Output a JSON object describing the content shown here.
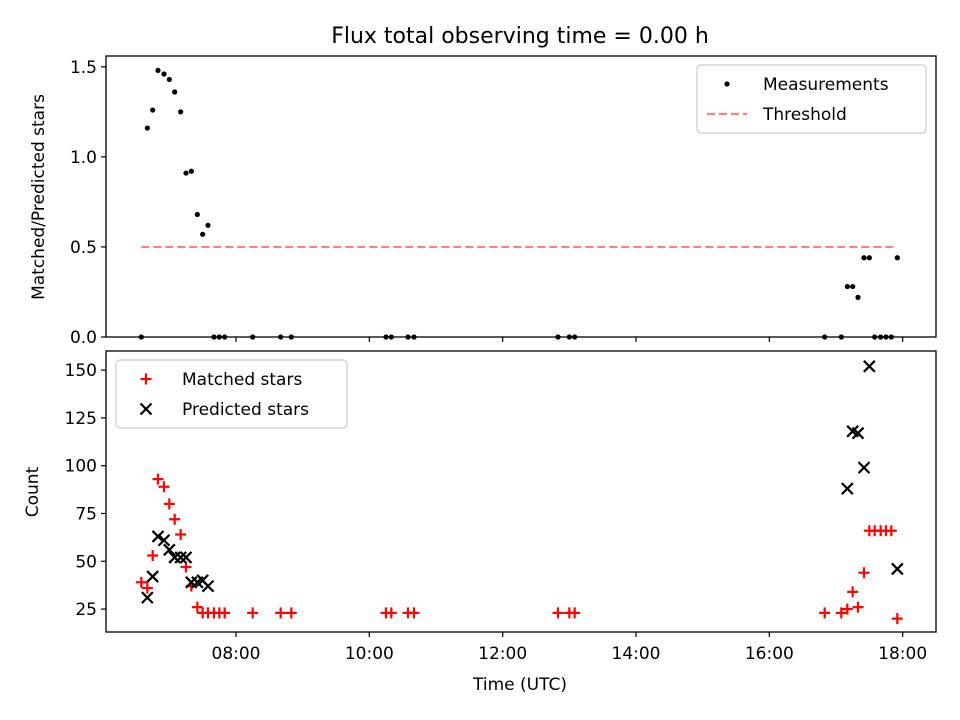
{
  "figure": {
    "title": "Flux total observing time = 0.00 h"
  },
  "colors": {
    "axes": "#000000",
    "measurement": "#000000",
    "threshold": "#ff7f7f",
    "matched": "#ff0000",
    "predicted": "#000000",
    "legend_border": "#cccccc"
  },
  "chart_data": [
    {
      "type": "scatter",
      "ylabel": "Matched/Predicted stars",
      "xlabel": "",
      "x_unit": "hours (UTC)",
      "xlim": [
        6.05,
        18.5
      ],
      "ylim": [
        0,
        1.56
      ],
      "yticks": [
        0.0,
        0.5,
        1.0,
        1.5
      ],
      "ytick_labels": [
        "0.0",
        "0.5",
        "1.0",
        "1.5"
      ],
      "xticks": [
        8,
        10,
        12,
        14,
        16,
        18
      ],
      "xtick_labels": [
        "",
        "",
        "",
        "",
        "",
        ""
      ],
      "legend": {
        "placement": "top-right",
        "entries": [
          "Measurements",
          "Threshold"
        ]
      },
      "series": [
        {
          "name": "Measurements",
          "style": "dot",
          "x": [
            6.58,
            6.67,
            6.75,
            6.83,
            6.92,
            7.0,
            7.08,
            7.17,
            7.25,
            7.33,
            7.42,
            7.5,
            7.58,
            7.67,
            7.75,
            7.83,
            8.25,
            8.67,
            8.83,
            10.25,
            10.33,
            10.58,
            10.67,
            12.83,
            13.0,
            13.08,
            16.83,
            17.08,
            17.17,
            17.25,
            17.33,
            17.42,
            17.5,
            17.58,
            17.67,
            17.75,
            17.83,
            17.92
          ],
          "y": [
            0.0,
            1.16,
            1.26,
            1.48,
            1.46,
            1.43,
            1.36,
            1.25,
            0.91,
            0.92,
            0.68,
            0.57,
            0.62,
            0.0,
            0.0,
            0.0,
            0.0,
            0.0,
            0.0,
            0.0,
            0.0,
            0.0,
            0.0,
            0.0,
            0.0,
            0.0,
            0.0,
            0.0,
            0.28,
            0.28,
            0.22,
            0.44,
            0.44,
            0.0,
            0.0,
            0.0,
            0.0,
            0.44
          ]
        },
        {
          "name": "Threshold",
          "style": "dashed-line",
          "x": [
            6.58,
            17.92
          ],
          "y": [
            0.5,
            0.5
          ]
        }
      ]
    },
    {
      "type": "scatter",
      "ylabel": "Count",
      "xlabel": "Time (UTC)",
      "x_unit": "hours (UTC)",
      "xlim": [
        6.05,
        18.5
      ],
      "ylim": [
        13,
        160
      ],
      "yticks": [
        25,
        50,
        75,
        100,
        125,
        150
      ],
      "ytick_labels": [
        "25",
        "50",
        "75",
        "100",
        "125",
        "150"
      ],
      "xticks": [
        8,
        10,
        12,
        14,
        16,
        18
      ],
      "xtick_labels": [
        "08:00",
        "10:00",
        "12:00",
        "14:00",
        "16:00",
        "18:00"
      ],
      "legend": {
        "placement": "top-left",
        "entries": [
          "Matched stars",
          "Predicted stars"
        ]
      },
      "series": [
        {
          "name": "Matched stars",
          "style": "plus",
          "x": [
            6.58,
            6.67,
            6.75,
            6.83,
            6.92,
            7.0,
            7.08,
            7.17,
            7.25,
            7.33,
            7.42,
            7.5,
            7.58,
            7.67,
            7.75,
            7.83,
            8.25,
            8.67,
            8.83,
            10.25,
            10.33,
            10.58,
            10.67,
            12.83,
            13.0,
            13.08,
            16.83,
            17.08,
            17.17,
            17.25,
            17.33,
            17.42,
            17.5,
            17.58,
            17.67,
            17.75,
            17.83,
            17.92
          ],
          "y": [
            39,
            36,
            53,
            93,
            89,
            80,
            72,
            64,
            47,
            37,
            26,
            23,
            23,
            23,
            23,
            23,
            23,
            23,
            23,
            23,
            23,
            23,
            23,
            23,
            23,
            23,
            23,
            23,
            25,
            34,
            26,
            44,
            66,
            66,
            66,
            66,
            66,
            20
          ]
        },
        {
          "name": "Predicted stars",
          "style": "x",
          "x": [
            6.67,
            6.75,
            6.83,
            6.92,
            7.0,
            7.08,
            7.17,
            7.25,
            7.33,
            7.42,
            7.5,
            7.58,
            17.17,
            17.25,
            17.33,
            17.42,
            17.5,
            17.92
          ],
          "y": [
            31,
            42,
            63,
            61,
            56,
            52,
            52,
            52,
            39,
            39,
            40,
            37,
            88,
            118,
            117,
            99,
            152,
            46
          ]
        }
      ]
    }
  ]
}
